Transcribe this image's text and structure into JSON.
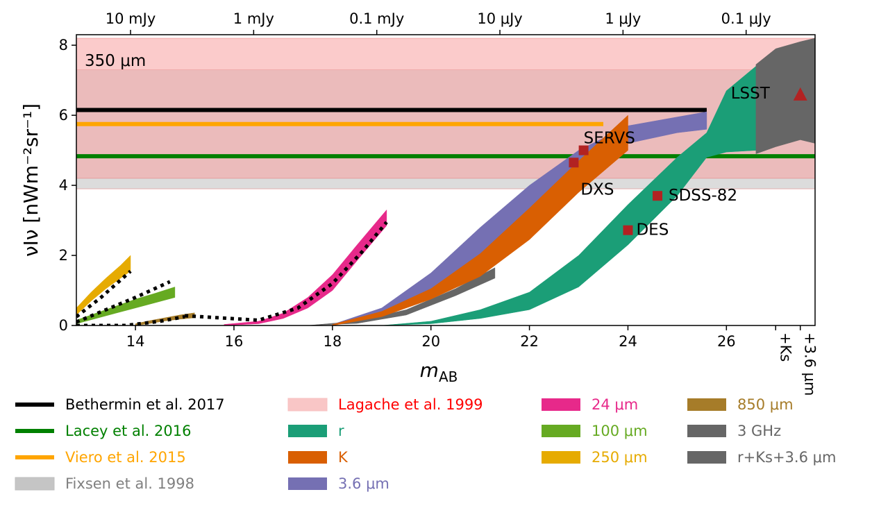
{
  "chart_data": {
    "type": "area",
    "xlabel_main": "m",
    "xlabel_sub": "AB",
    "ylabel": "νIν [nWm⁻²sr⁻¹]",
    "xlim": [
      12.8,
      27.8
    ],
    "ylim": [
      0,
      8.3
    ],
    "x_ticks": [
      14,
      16,
      18,
      20,
      22,
      24,
      26
    ],
    "x_extra_ticks": [
      {
        "x": 27.0,
        "label": "+Ks"
      },
      {
        "x": 27.5,
        "label": "+3.6 μm"
      }
    ],
    "y_ticks": [
      0,
      2,
      4,
      6,
      8
    ],
    "top_ticks": [
      {
        "x": 13.9,
        "label": "10 mJy"
      },
      {
        "x": 16.4,
        "label": "1 mJy"
      },
      {
        "x": 18.9,
        "label": "0.1 mJy"
      },
      {
        "x": 21.4,
        "label": "10 μJy"
      },
      {
        "x": 23.9,
        "label": "1 μJy"
      },
      {
        "x": 26.4,
        "label": "0.1 μJy"
      }
    ],
    "bands": [
      {
        "name": "Fixsen et al. 1998",
        "y0": 3.9,
        "y1": 7.3,
        "color": "#bfbfbf"
      },
      {
        "name": "Lagache et al. 1999",
        "y0": 4.2,
        "y1": 8.2,
        "color": "#f8a0a0"
      }
    ],
    "band_label": "350 μm",
    "lines": [
      {
        "name": "Bethermin et al. 2017",
        "y": 6.15,
        "x_end": 25.6,
        "color": "#000000"
      },
      {
        "name": "Lacey et al. 2016",
        "y": 4.83,
        "x_end": 27.8,
        "color": "#008000"
      },
      {
        "name": "Viero et al. 2015",
        "y": 5.75,
        "x_end": 23.5,
        "color": "#ffa500"
      }
    ],
    "series": [
      {
        "name": "850 μm",
        "color": "#a67c29",
        "x": [
          14.0,
          14.3,
          14.6,
          14.9,
          15.2
        ],
        "lower": [
          0.0,
          0.06,
          0.13,
          0.18,
          0.22
        ],
        "upper": [
          0.05,
          0.14,
          0.22,
          0.3,
          0.36
        ]
      },
      {
        "name": "100 μm",
        "color": "#66aa22",
        "x": [
          12.8,
          13.2,
          13.6,
          14.0,
          14.4,
          14.8
        ],
        "lower": [
          0.05,
          0.2,
          0.35,
          0.5,
          0.65,
          0.8
        ],
        "upper": [
          0.15,
          0.35,
          0.55,
          0.75,
          0.92,
          1.1
        ]
      },
      {
        "name": "250 μm",
        "color": "#e6ab02",
        "x": [
          12.8,
          13.1,
          13.4,
          13.7,
          13.9
        ],
        "lower": [
          0.3,
          0.7,
          1.05,
          1.35,
          1.55
        ],
        "upper": [
          0.5,
          0.95,
          1.35,
          1.72,
          2.0
        ]
      },
      {
        "name": "24 μm",
        "color": "#e7298a",
        "x": [
          15.8,
          16.5,
          17.0,
          17.5,
          18.0,
          18.5,
          19.1
        ],
        "lower": [
          0.0,
          0.05,
          0.2,
          0.5,
          1.0,
          1.85,
          2.85
        ],
        "upper": [
          0.03,
          0.12,
          0.35,
          0.8,
          1.45,
          2.3,
          3.3
        ]
      },
      {
        "name": "3 GHz",
        "color": "#666666",
        "x": [
          17.5,
          18.5,
          19.5,
          20.5,
          21.3
        ],
        "lower": [
          0.0,
          0.06,
          0.3,
          0.85,
          1.35
        ],
        "upper": [
          0.0,
          0.12,
          0.45,
          1.05,
          1.65
        ]
      },
      {
        "name": "3.6 μm",
        "color": "#7570b3",
        "x": [
          18.0,
          19.0,
          20.0,
          21.0,
          22.0,
          23.0,
          24.0,
          25.0,
          25.6
        ],
        "lower": [
          0.0,
          0.3,
          0.9,
          2.0,
          3.35,
          4.5,
          5.2,
          5.5,
          5.6
        ],
        "upper": [
          0.03,
          0.5,
          1.5,
          2.8,
          4.0,
          5.0,
          5.7,
          5.95,
          6.1
        ]
      },
      {
        "name": "K",
        "color": "#d95f02",
        "x": [
          18.0,
          19.0,
          20.0,
          21.0,
          22.0,
          23.0,
          24.0
        ],
        "lower": [
          0.0,
          0.25,
          0.75,
          1.4,
          2.45,
          3.8,
          5.0
        ],
        "upper": [
          0.03,
          0.4,
          1.05,
          2.05,
          3.35,
          4.7,
          6.0
        ]
      },
      {
        "name": "r",
        "color": "#1b9e77",
        "x": [
          19.0,
          20.0,
          21.0,
          22.0,
          23.0,
          24.0,
          25.0,
          25.6,
          26.0,
          26.6
        ],
        "lower": [
          0.0,
          0.05,
          0.2,
          0.45,
          1.1,
          2.3,
          3.7,
          4.8,
          4.95,
          5.0
        ],
        "upper": [
          0.0,
          0.12,
          0.45,
          0.95,
          2.0,
          3.45,
          4.8,
          5.5,
          6.7,
          7.4
        ]
      },
      {
        "name": "r+Ks+3.6 μm",
        "color": "#666666",
        "x": [
          26.6,
          27.0,
          27.5,
          27.8
        ],
        "lower": [
          4.9,
          5.1,
          5.3,
          5.2
        ],
        "upper": [
          7.45,
          7.9,
          8.1,
          8.2
        ]
      }
    ],
    "dotted": [
      {
        "x": [
          12.8,
          13.3,
          13.9
        ],
        "y": [
          0.25,
          0.8,
          1.55
        ]
      },
      {
        "x": [
          12.8,
          13.4,
          14.0,
          14.7
        ],
        "y": [
          0.1,
          0.45,
          0.8,
          1.25
        ]
      },
      {
        "x": [
          12.8,
          13.8,
          14.5,
          15.0
        ],
        "y": [
          0.0,
          0.0,
          0.12,
          0.25
        ]
      },
      {
        "x": [
          15.0,
          16.5,
          17.3,
          18.0,
          18.6,
          19.1
        ],
        "y": [
          0.28,
          0.15,
          0.5,
          1.2,
          2.1,
          2.95
        ]
      }
    ],
    "markers": [
      {
        "label": "DXS",
        "x": 22.9,
        "y": 4.65,
        "label_dx": 10,
        "label_dy": 38
      },
      {
        "label": "SERVS",
        "x": 23.1,
        "y": 5.0,
        "label_dx": 0,
        "label_dy": -18
      },
      {
        "label": "DES",
        "x": 24.0,
        "y": 2.72,
        "label_dx": 12,
        "label_dy": -1
      },
      {
        "label": "SDSS-82",
        "x": 24.6,
        "y": 3.7,
        "label_dx": 16,
        "label_dy": -1
      }
    ],
    "triangle_marker": {
      "label": "LSST",
      "x": 27.5,
      "y": 6.6,
      "label_dx": -100,
      "label_dy": -2
    }
  },
  "legend": {
    "columns": [
      [
        {
          "label": "Bethermin et al. 2017",
          "kind": "line",
          "color": "#000000",
          "text_color": "#000000"
        },
        {
          "label": "Lacey et al. 2016",
          "kind": "line",
          "color": "#008000",
          "text_color": "#008000"
        },
        {
          "label": "Viero et al. 2015",
          "kind": "line",
          "color": "#ffa500",
          "text_color": "#ffa500"
        },
        {
          "label": "Fixsen et al. 1998",
          "kind": "band",
          "color": "#bfbfbf",
          "text_color": "#808080"
        }
      ],
      [
        {
          "label": "Lagache et al. 1999",
          "kind": "band",
          "color": "#f8c0c0",
          "text_color": "#ff0000"
        },
        {
          "label": "r",
          "kind": "patch",
          "color": "#1b9e77",
          "text_color": "#1b9e77"
        },
        {
          "label": "K",
          "kind": "patch",
          "color": "#d95f02",
          "text_color": "#d95f02"
        },
        {
          "label": "3.6 μm",
          "kind": "patch",
          "color": "#7570b3",
          "text_color": "#7570b3"
        }
      ],
      [
        {
          "label": "24 μm",
          "kind": "patch",
          "color": "#e7298a",
          "text_color": "#e7298a"
        },
        {
          "label": "100 μm",
          "kind": "patch",
          "color": "#66aa22",
          "text_color": "#66aa22"
        },
        {
          "label": "250 μm",
          "kind": "patch",
          "color": "#e6ab02",
          "text_color": "#e6ab02"
        }
      ],
      [
        {
          "label": "850 μm",
          "kind": "patch",
          "color": "#a67c29",
          "text_color": "#a67c29"
        },
        {
          "label": "3 GHz",
          "kind": "patch",
          "color": "#666666",
          "text_color": "#666666"
        },
        {
          "label": "r+Ks+3.6 μm",
          "kind": "patch",
          "color": "#666666",
          "text_color": "#666666"
        }
      ]
    ]
  }
}
